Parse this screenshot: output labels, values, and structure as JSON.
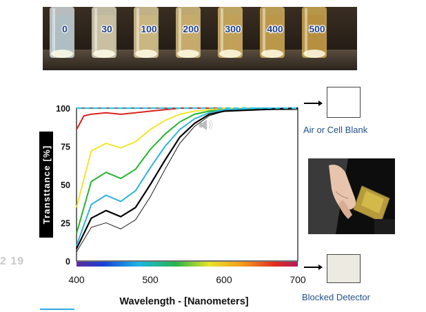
{
  "tubes_photo": {
    "concentration_labels": [
      "0",
      "30",
      "100",
      "200",
      "300",
      "400",
      "500"
    ]
  },
  "chart_data": {
    "type": "line",
    "xlabel": "Wavelength - [Nanometers]",
    "ylabel": "Transttance [%]",
    "xlim": [
      400,
      700
    ],
    "ylim": [
      0,
      100
    ],
    "x_ticks": [
      "400",
      "500",
      "600",
      "700"
    ],
    "y_ticks": [
      "0",
      "25",
      "50",
      "75",
      "100"
    ],
    "reference_line": {
      "y": 100,
      "color": "#2ec6e8",
      "style": "dashed"
    },
    "spectrum_bar": true,
    "series": [
      {
        "color": "#d9221c",
        "points": [
          [
            400,
            86
          ],
          [
            410,
            95
          ],
          [
            420,
            96
          ],
          [
            440,
            97
          ],
          [
            460,
            96
          ],
          [
            480,
            97
          ],
          [
            500,
            98
          ],
          [
            520,
            99
          ],
          [
            540,
            100
          ],
          [
            560,
            100
          ],
          [
            600,
            100
          ],
          [
            650,
            100
          ],
          [
            700,
            100
          ]
        ]
      },
      {
        "color": "#f2e52b",
        "points": [
          [
            400,
            35
          ],
          [
            420,
            72
          ],
          [
            440,
            77
          ],
          [
            460,
            74
          ],
          [
            480,
            78
          ],
          [
            500,
            86
          ],
          [
            520,
            92
          ],
          [
            540,
            96
          ],
          [
            560,
            98
          ],
          [
            580,
            99
          ],
          [
            600,
            100
          ],
          [
            650,
            100
          ],
          [
            700,
            100
          ]
        ]
      },
      {
        "color": "#25b32e",
        "points": [
          [
            400,
            18
          ],
          [
            420,
            52
          ],
          [
            440,
            58
          ],
          [
            460,
            54
          ],
          [
            480,
            60
          ],
          [
            500,
            73
          ],
          [
            520,
            83
          ],
          [
            540,
            91
          ],
          [
            560,
            96
          ],
          [
            580,
            98
          ],
          [
            600,
            99
          ],
          [
            650,
            100
          ],
          [
            700,
            100
          ]
        ]
      },
      {
        "color": "#2bb3d9",
        "points": [
          [
            400,
            10
          ],
          [
            420,
            37
          ],
          [
            440,
            43
          ],
          [
            460,
            39
          ],
          [
            480,
            46
          ],
          [
            500,
            61
          ],
          [
            520,
            75
          ],
          [
            540,
            86
          ],
          [
            560,
            93
          ],
          [
            580,
            97
          ],
          [
            600,
            99
          ],
          [
            650,
            100
          ],
          [
            700,
            100
          ]
        ]
      },
      {
        "color": "#000000",
        "width": 2.2,
        "points": [
          [
            400,
            8
          ],
          [
            420,
            28
          ],
          [
            440,
            33
          ],
          [
            460,
            29
          ],
          [
            480,
            35
          ],
          [
            500,
            50
          ],
          [
            520,
            66
          ],
          [
            540,
            81
          ],
          [
            560,
            90
          ],
          [
            580,
            96
          ],
          [
            600,
            98
          ],
          [
            650,
            99
          ],
          [
            700,
            100
          ]
        ]
      },
      {
        "color": "#000000",
        "width": 0.9,
        "points": [
          [
            400,
            6
          ],
          [
            420,
            22
          ],
          [
            440,
            25
          ],
          [
            460,
            21
          ],
          [
            480,
            27
          ],
          [
            500,
            42
          ],
          [
            520,
            60
          ],
          [
            540,
            77
          ],
          [
            560,
            88
          ],
          [
            580,
            95
          ],
          [
            600,
            98
          ],
          [
            650,
            99
          ],
          [
            700,
            99
          ]
        ]
      }
    ]
  },
  "reference_blocks": {
    "top": {
      "label": "Air or Cell Blank",
      "color": "#ffffff"
    },
    "bottom": {
      "label": "Blocked Detector",
      "color": "#edeae2"
    }
  },
  "slide_number": "2 19"
}
